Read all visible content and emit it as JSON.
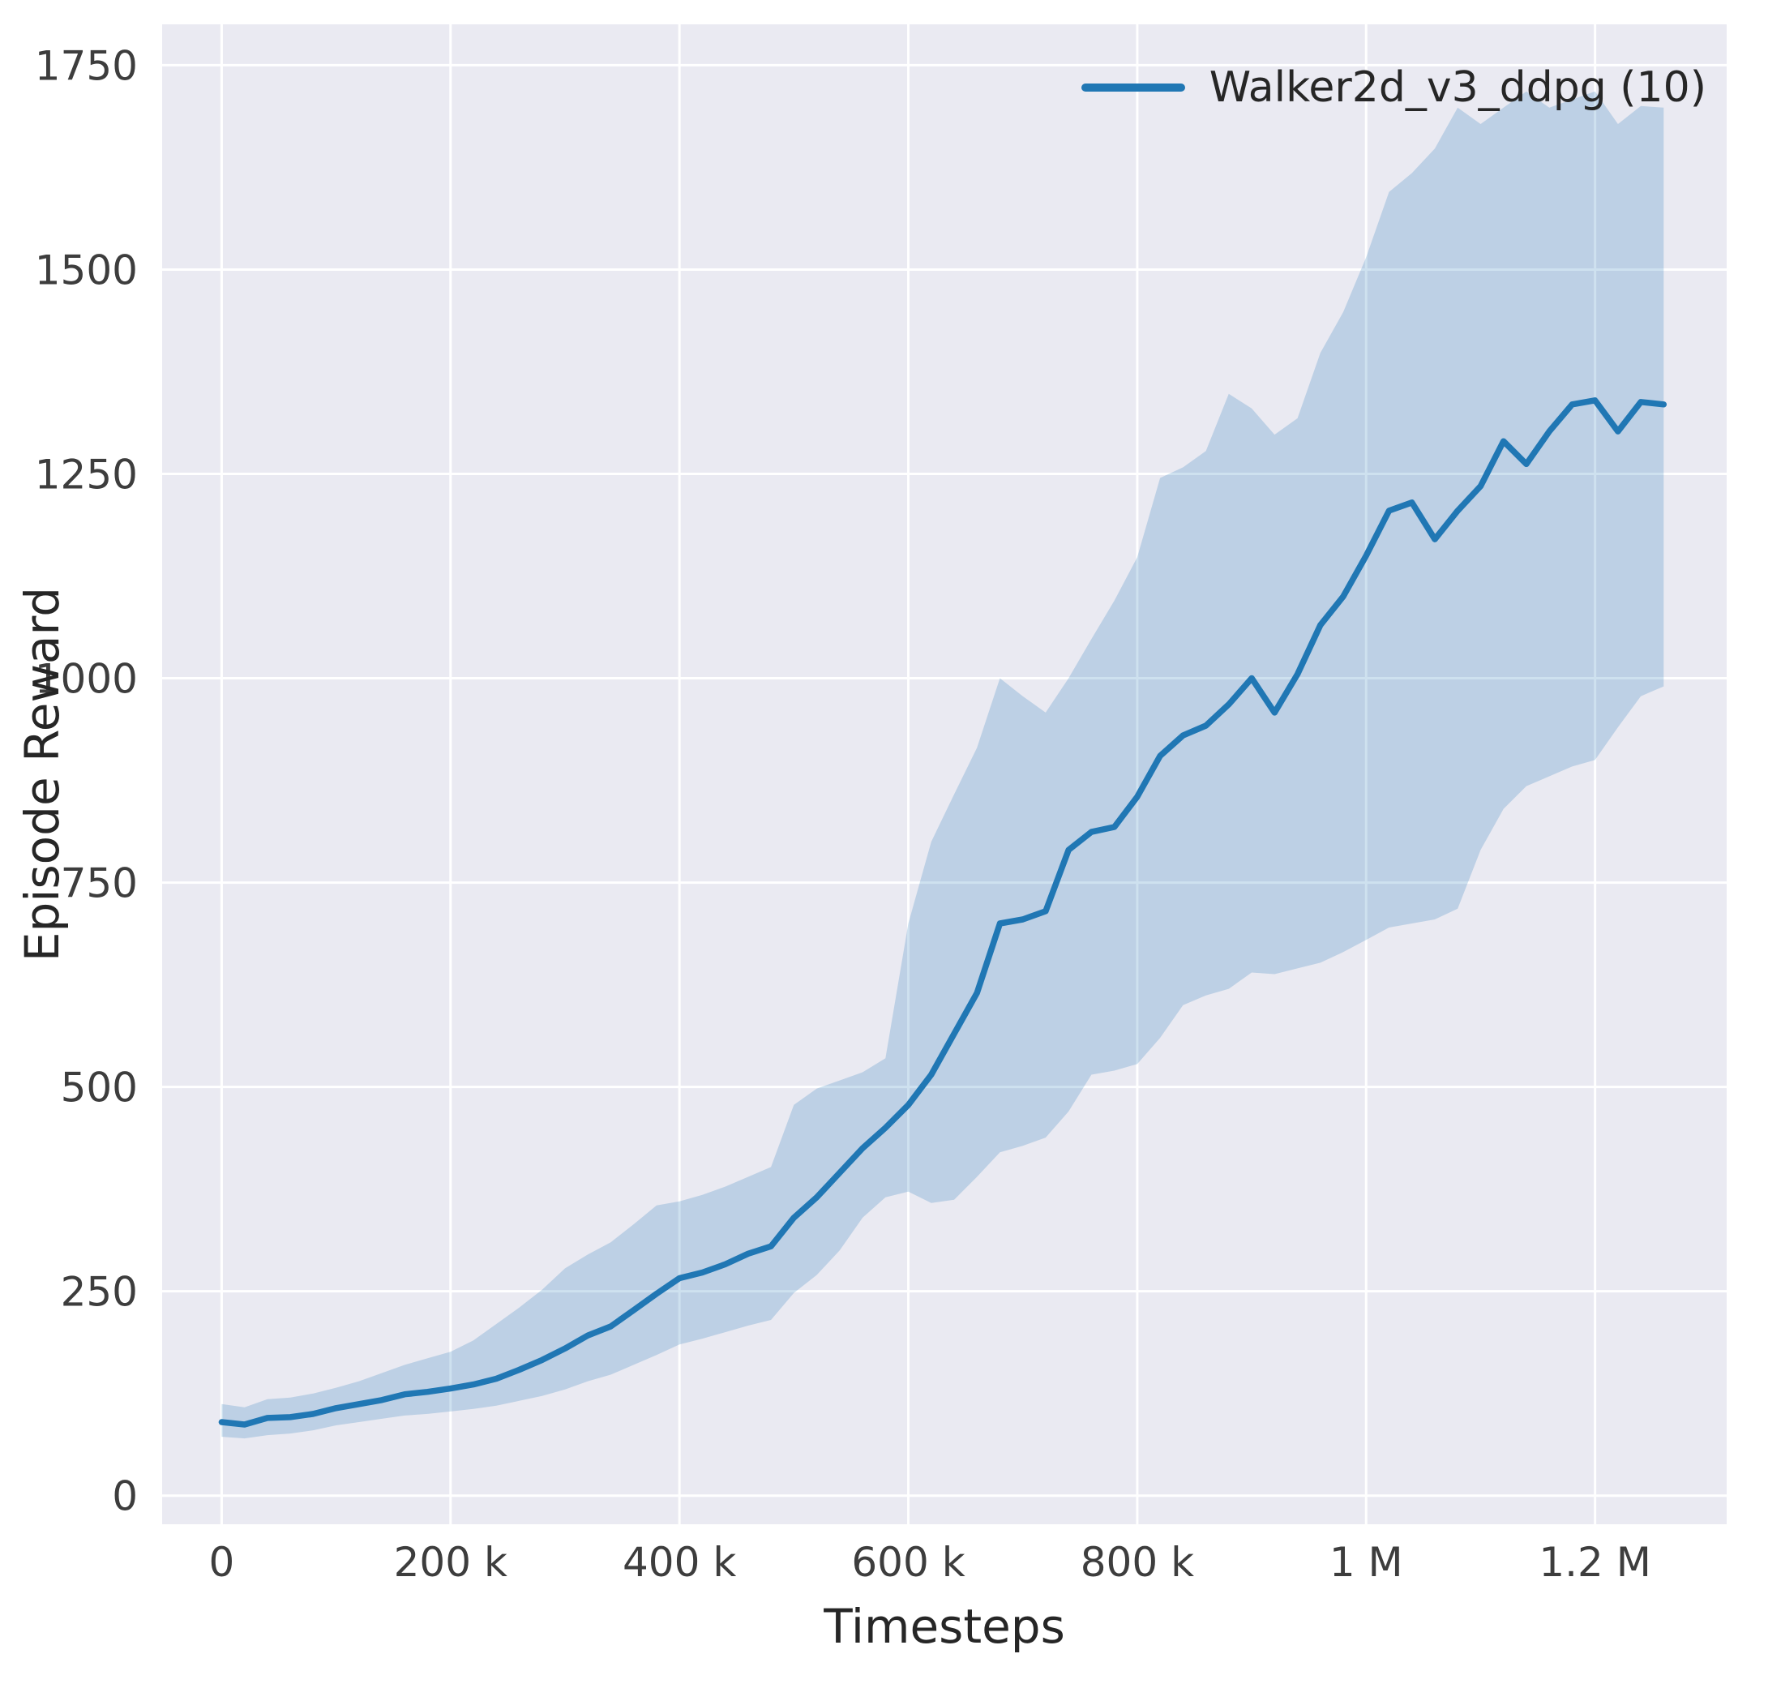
{
  "chart_data": {
    "type": "line",
    "title": "",
    "xlabel": "Timesteps",
    "ylabel": "Episode Reward",
    "legend_position": "upper right",
    "grid": true,
    "xlim": [
      -52000,
      1315000
    ],
    "ylim": [
      -35,
      1800
    ],
    "xticks": [
      0,
      200000,
      400000,
      600000,
      800000,
      1000000,
      1200000
    ],
    "xtick_labels": [
      "0",
      "200 k",
      "400 k",
      "600 k",
      "800 k",
      "1 M",
      "1.2 M"
    ],
    "yticks": [
      0,
      250,
      500,
      750,
      1000,
      1250,
      1500,
      1750
    ],
    "ytick_labels": [
      "0",
      "250",
      "500",
      "750",
      "1000",
      "1250",
      "1500",
      "1750"
    ],
    "x": [
      0,
      20000,
      40000,
      60000,
      80000,
      100000,
      120000,
      140000,
      160000,
      180000,
      200000,
      220000,
      240000,
      260000,
      280000,
      300000,
      320000,
      340000,
      360000,
      380000,
      400000,
      420000,
      440000,
      460000,
      480000,
      500000,
      520000,
      540000,
      560000,
      580000,
      600000,
      620000,
      640000,
      660000,
      680000,
      700000,
      720000,
      740000,
      760000,
      780000,
      800000,
      820000,
      840000,
      860000,
      880000,
      900000,
      920000,
      940000,
      960000,
      980000,
      1000000,
      1020000,
      1040000,
      1060000,
      1080000,
      1100000,
      1120000,
      1140000,
      1160000,
      1180000,
      1200000,
      1220000,
      1240000,
      1260000
    ],
    "series": [
      {
        "name": "Walker2d_v3_ddpg (10)",
        "values": [
          90,
          87,
          95,
          96,
          100,
          107,
          112,
          117,
          124,
          127,
          131,
          136,
          143,
          154,
          166,
          180,
          196,
          207,
          227,
          247,
          266,
          273,
          283,
          296,
          305,
          340,
          365,
          395,
          425,
          450,
          478,
          515,
          565,
          615,
          700,
          705,
          715,
          790,
          812,
          818,
          855,
          905,
          930,
          942,
          968,
          1000,
          958,
          1005,
          1065,
          1100,
          1150,
          1205,
          1215,
          1170,
          1205,
          1235,
          1290,
          1262,
          1302,
          1335,
          1340,
          1302,
          1338,
          1335
        ]
      }
    ],
    "band": {
      "lower": [
        72,
        70,
        74,
        76,
        80,
        86,
        90,
        94,
        98,
        100,
        103,
        106,
        110,
        116,
        122,
        130,
        140,
        148,
        160,
        172,
        185,
        192,
        200,
        208,
        215,
        248,
        270,
        300,
        340,
        365,
        372,
        358,
        362,
        390,
        420,
        428,
        438,
        470,
        515,
        520,
        528,
        560,
        600,
        612,
        620,
        640,
        638,
        645,
        652,
        665,
        680,
        695,
        700,
        705,
        718,
        790,
        840,
        868,
        880,
        892,
        900,
        940,
        978,
        990
      ],
      "upper": [
        112,
        108,
        118,
        120,
        125,
        132,
        140,
        150,
        160,
        168,
        176,
        190,
        210,
        230,
        252,
        278,
        295,
        310,
        332,
        355,
        360,
        368,
        378,
        390,
        402,
        478,
        498,
        508,
        518,
        535,
        700,
        800,
        858,
        915,
        1000,
        978,
        958,
        1000,
        1048,
        1095,
        1148,
        1245,
        1258,
        1278,
        1348,
        1330,
        1298,
        1318,
        1398,
        1448,
        1515,
        1595,
        1618,
        1648,
        1698,
        1678,
        1698,
        1718,
        1698,
        1708,
        1718,
        1678,
        1700,
        1698
      ]
    },
    "colors": {
      "line": "#2077b4",
      "band": "#2077b4",
      "band_opacity": 0.22,
      "plot_background": "#eaeaf2",
      "grid": "#ffffff",
      "text": "#3d3d3d"
    }
  }
}
